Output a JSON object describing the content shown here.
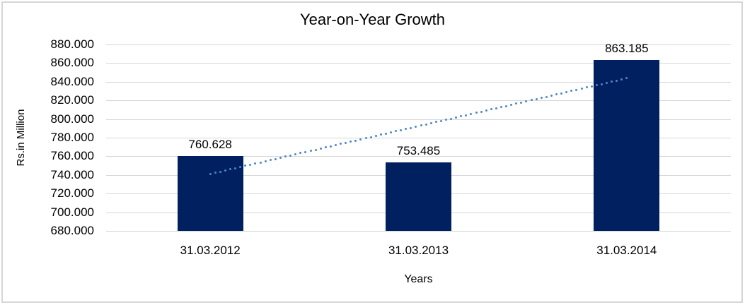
{
  "chart_data": {
    "type": "bar",
    "title": "Year-on-Year Growth",
    "xlabel": "Years",
    "ylabel": "Rs.in Million",
    "categories": [
      "31.03.2012",
      "31.03.2013",
      "31.03.2014"
    ],
    "values": [
      760.628,
      753.485,
      863.185
    ],
    "data_labels": [
      "760.628",
      "753.485",
      "863.185"
    ],
    "ylim": [
      680,
      880
    ],
    "yticks": [
      {
        "value": 880,
        "label": "880.000"
      },
      {
        "value": 860,
        "label": "860.000"
      },
      {
        "value": 840,
        "label": "840.000"
      },
      {
        "value": 820,
        "label": "820.000"
      },
      {
        "value": 800,
        "label": "800.000"
      },
      {
        "value": 780,
        "label": "780.000"
      },
      {
        "value": 760,
        "label": "760.000"
      },
      {
        "value": 740,
        "label": "740.000"
      },
      {
        "value": 720,
        "label": "720.000"
      },
      {
        "value": 700,
        "label": "700.000"
      },
      {
        "value": 680,
        "label": "680.000"
      }
    ],
    "grid": true,
    "legend": false,
    "trendline": {
      "type": "linear",
      "line_style": "dotted",
      "start_value": 741.1,
      "end_value": 843.7
    },
    "colors": {
      "bar": "#002060",
      "gridline": "#d6d6d6",
      "trendline": "#4f86c9",
      "text": "#000000",
      "frame_border": "#d6d6d6",
      "background": "#ffffff"
    }
  }
}
